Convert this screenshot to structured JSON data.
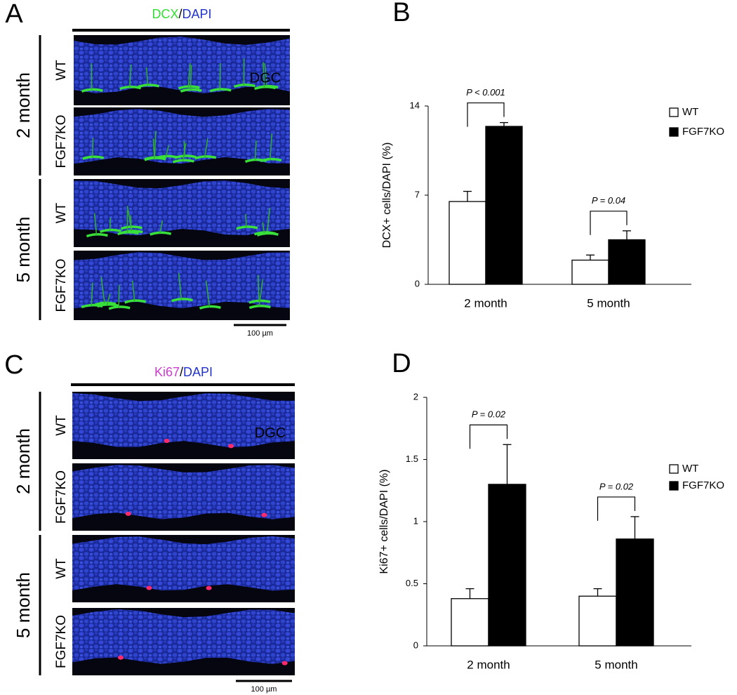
{
  "panels": [
    {
      "letter": "A",
      "stain": [
        "DCX",
        "/",
        "DAPI"
      ],
      "rows": [
        "WT",
        "FGF7KO",
        "WT",
        "FGF7KO"
      ],
      "groups": [
        "2 month",
        "5 month"
      ],
      "region": "DGC",
      "scale": "100 µm"
    },
    {
      "letter": "C",
      "stain": [
        "Ki67",
        "/",
        "DAPI"
      ],
      "rows": [
        "WT",
        "FGF7KO",
        "WT",
        "FGF7KO"
      ],
      "groups": [
        "2 month",
        "5 month"
      ],
      "region": "DGC",
      "scale": "100 µm"
    }
  ],
  "chart_data": [
    {
      "type": "bar",
      "panel_label": "B",
      "y_label": "DCX+ cells/DAPI (%)",
      "categories": [
        "2 month",
        "5 month"
      ],
      "series": [
        {
          "name": "WT",
          "color": "#ffffff",
          "values": [
            6.5,
            1.9
          ],
          "errors": [
            0.8,
            0.4
          ]
        },
        {
          "name": "FGF7KO",
          "color": "#000000",
          "values": [
            12.4,
            3.5
          ],
          "errors": [
            0.3,
            0.7
          ]
        }
      ],
      "annotations": [
        "P < 0.001",
        "P = 0.04"
      ],
      "ylim": [
        0,
        14
      ],
      "yticks": [
        0,
        7,
        14
      ]
    },
    {
      "type": "bar",
      "panel_label": "D",
      "y_label": "Ki67+ cells/DAPI (%)",
      "categories": [
        "2 month",
        "5 month"
      ],
      "series": [
        {
          "name": "WT",
          "color": "#ffffff",
          "values": [
            0.38,
            0.4
          ],
          "errors": [
            0.08,
            0.06
          ]
        },
        {
          "name": "FGF7KO",
          "color": "#000000",
          "values": [
            1.3,
            0.86
          ],
          "errors": [
            0.32,
            0.18
          ]
        }
      ],
      "annotations": [
        "P = 0.02",
        "P = 0.02"
      ],
      "ylim": [
        0,
        2
      ],
      "yticks": [
        0,
        0.5,
        1,
        1.5,
        2
      ]
    }
  ]
}
